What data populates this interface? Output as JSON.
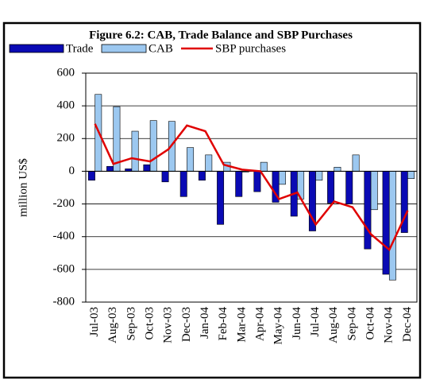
{
  "chart_data": {
    "type": "bar",
    "title": "Figure 6.2: CAB, Trade Balance and SBP Purchases",
    "y_label": "million US$",
    "categories": [
      "Jul-03",
      "Aug-03",
      "Sep-03",
      "Oct-03",
      "Nov-03",
      "Dec-03",
      "Jan-04",
      "Feb-04",
      "Mar-04",
      "Apr-04",
      "May-04",
      "Jun-04",
      "Jul-04",
      "Aug-04",
      "Sep-04",
      "Oct-04",
      "Nov-04",
      "Dec-04"
    ],
    "series": [
      {
        "name": "Trade",
        "type": "bar",
        "color": "#0a0ab4",
        "values": [
          -55,
          30,
          15,
          40,
          -65,
          -155,
          -55,
          -325,
          -155,
          -125,
          -190,
          -275,
          -365,
          -195,
          -200,
          -475,
          -630,
          -375
        ]
      },
      {
        "name": "CAB",
        "type": "bar",
        "color": "#9cc8f0",
        "values": [
          470,
          395,
          245,
          310,
          305,
          145,
          100,
          55,
          -5,
          55,
          -80,
          -170,
          -55,
          25,
          100,
          -235,
          -665,
          -45
        ]
      },
      {
        "name": "SBP purchases",
        "type": "line",
        "color": "#e00000",
        "values": [
          290,
          45,
          80,
          60,
          135,
          280,
          245,
          40,
          10,
          0,
          -170,
          -130,
          -325,
          -185,
          -220,
          -385,
          -480,
          -240
        ]
      }
    ],
    "ylim": [
      -800,
      600
    ],
    "yticks": [
      -800,
      -600,
      -400,
      -200,
      0,
      200,
      400,
      600
    ],
    "grid": true
  }
}
